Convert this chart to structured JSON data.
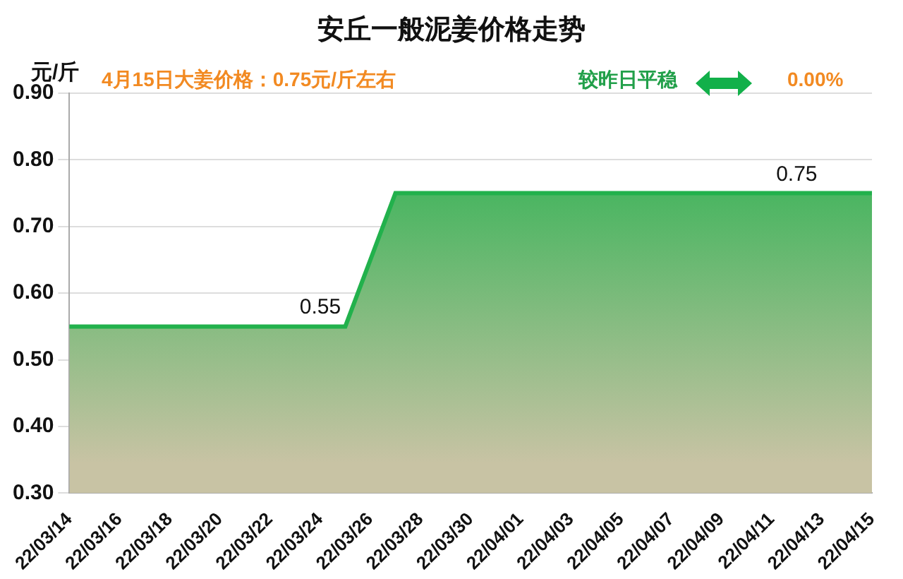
{
  "chart_data": {
    "type": "area",
    "title": "安丘一般泥姜价格走势",
    "ylabel": "元/斤",
    "annotations": [
      "4月15日大姜价格：0.75元/斤左右",
      "较昨日平稳",
      "0.00%"
    ],
    "categories": [
      "22/03/14",
      null,
      "22/03/16",
      null,
      "22/03/18",
      null,
      "22/03/20",
      null,
      "22/03/22",
      null,
      "22/03/24",
      null,
      "22/03/26",
      null,
      "22/03/28",
      null,
      "22/03/30",
      null,
      "22/04/01",
      null,
      "22/04/03",
      null,
      "22/04/05",
      null,
      "22/04/07",
      null,
      "22/04/09",
      null,
      "22/04/11",
      null,
      "22/04/13",
      null,
      "22/04/15"
    ],
    "series": [
      {
        "color": "#22b14c",
        "values": [
          0.55,
          0.55,
          0.55,
          0.55,
          0.55,
          0.55,
          0.55,
          0.55,
          0.55,
          0.55,
          0.55,
          0.55,
          0.65,
          0.75,
          0.75,
          0.75,
          0.75,
          0.75,
          0.75,
          0.75,
          0.75,
          0.75,
          0.75,
          0.75,
          0.75,
          0.75,
          0.75,
          0.75,
          0.75,
          0.75,
          0.75,
          0.75,
          0.75
        ],
        "value_labels": [
          null,
          null,
          null,
          null,
          null,
          null,
          null,
          null,
          null,
          null,
          "0.55",
          null,
          null,
          null,
          null,
          null,
          null,
          null,
          null,
          null,
          null,
          null,
          null,
          null,
          null,
          null,
          null,
          null,
          null,
          "0.75",
          null,
          null,
          null
        ]
      }
    ],
    "ylim": [
      0.3,
      0.9
    ],
    "yticks": [
      {
        "value": 0.3,
        "label": "0.30"
      },
      {
        "value": 0.4,
        "label": "0.40"
      },
      {
        "value": 0.5,
        "label": "0.50"
      },
      {
        "value": 0.6,
        "label": "0.60"
      },
      {
        "value": 0.7,
        "label": "0.70"
      },
      {
        "value": 0.8,
        "label": "0.80"
      },
      {
        "value": 0.9,
        "label": "0.90"
      }
    ],
    "grid": "y",
    "legend": false,
    "marker": "none"
  }
}
